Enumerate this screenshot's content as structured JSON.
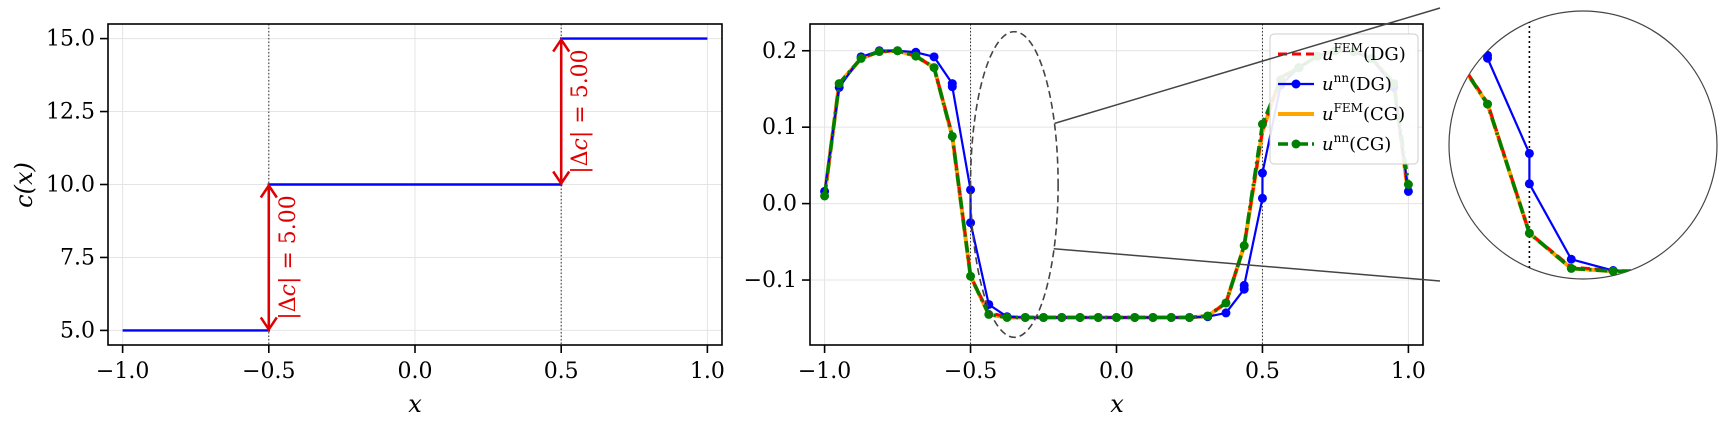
{
  "chart_data": [
    {
      "type": "line",
      "xlabel": "x",
      "ylabel": "c(x)",
      "xlim": [
        -1.05,
        1.05
      ],
      "ylim": [
        4.5,
        15.5
      ],
      "xticks": [
        "−1.0",
        "−0.5",
        "0.0",
        "0.5",
        "1.0"
      ],
      "xtick_values": [
        -1.0,
        -0.5,
        0.0,
        0.5,
        1.0
      ],
      "yticks": [
        "5.0",
        "7.5",
        "10.0",
        "12.5",
        "15.0"
      ],
      "ytick_values": [
        5.0,
        7.5,
        10.0,
        12.5,
        15.0
      ],
      "grid": true,
      "vlines": [
        -0.5,
        0.5
      ],
      "series": [
        {
          "color": "#0000ff",
          "x": [
            -1.0,
            -0.5,
            -0.5,
            0.5,
            0.5,
            1.0
          ],
          "y": [
            5.0,
            5.0,
            10.0,
            10.0,
            15.0,
            15.0
          ]
        }
      ],
      "annotations": [
        {
          "x": -0.5,
          "y_from": 5.0,
          "y_to": 10.0,
          "text_prefix": "|Δ",
          "text_var": "c",
          "text_suffix": "| = 5.00"
        },
        {
          "x": 0.5,
          "y_from": 10.0,
          "y_to": 15.0,
          "text_prefix": "|Δ",
          "text_var": "c",
          "text_suffix": "| = 5.00"
        }
      ]
    },
    {
      "type": "line",
      "xlabel": "x",
      "xlim": [
        -1.05,
        1.05
      ],
      "ylim": [
        -0.185,
        0.235
      ],
      "xticks": [
        "−1.0",
        "−0.5",
        "0.0",
        "0.5",
        "1.0"
      ],
      "xtick_values": [
        -1.0,
        -0.5,
        0.0,
        0.5,
        1.0
      ],
      "yticks": [
        "−0.1",
        "0.0",
        "0.1",
        "0.2"
      ],
      "ytick_values": [
        -0.1,
        0.0,
        0.1,
        0.2
      ],
      "grid": true,
      "vlines": [
        -0.5,
        0.5
      ],
      "legend_position": "top-right",
      "series": [
        {
          "name_var": "u",
          "name_sup": "FEM",
          "name_arg": "(DG)",
          "color": "#ff0000",
          "style": "dashed",
          "x": [
            -1.0,
            -0.95,
            -0.875,
            -0.8125,
            -0.75,
            -0.6875,
            -0.625,
            -0.5625,
            -0.5,
            -0.4375,
            -0.375,
            -0.3125,
            -0.25,
            -0.1875,
            -0.125,
            -0.0625,
            0.0,
            0.0625,
            0.125,
            0.1875,
            0.25,
            0.3125,
            0.375,
            0.4375,
            0.5,
            0.5625,
            0.625,
            0.6875,
            0.75,
            0.8125,
            0.875,
            0.95,
            1.0
          ],
          "y": [
            0.012,
            0.155,
            0.19,
            0.199,
            0.2,
            0.193,
            0.178,
            0.09,
            -0.095,
            -0.143,
            -0.148,
            -0.149,
            -0.149,
            -0.149,
            -0.149,
            -0.149,
            -0.149,
            -0.149,
            -0.149,
            -0.149,
            -0.149,
            -0.147,
            -0.13,
            -0.055,
            0.095,
            0.165,
            0.178,
            0.193,
            0.2,
            0.199,
            0.19,
            0.155,
            0.012
          ]
        },
        {
          "name_var": "u",
          "name_sup": "nn",
          "name_arg": "(DG)",
          "color": "#0000ff",
          "style": "solid-dot",
          "x": [
            -1.0,
            -0.95,
            -0.875,
            -0.8125,
            -0.75,
            -0.6875,
            -0.625,
            -0.5625,
            -0.5625,
            -0.5,
            -0.5,
            -0.4375,
            -0.375,
            -0.3125,
            -0.25,
            -0.1875,
            -0.125,
            -0.0625,
            0.0,
            0.0625,
            0.125,
            0.1875,
            0.25,
            0.3125,
            0.375,
            0.4375,
            0.4375,
            0.5,
            0.5,
            0.5625,
            0.625,
            0.6875,
            0.75,
            0.8125,
            0.875,
            0.95,
            1.0
          ],
          "y": [
            0.016,
            0.152,
            0.192,
            0.2,
            0.2,
            0.198,
            0.192,
            0.157,
            0.153,
            0.018,
            -0.025,
            -0.132,
            -0.148,
            -0.149,
            -0.149,
            -0.149,
            -0.149,
            -0.149,
            -0.149,
            -0.149,
            -0.149,
            -0.149,
            -0.149,
            -0.148,
            -0.143,
            -0.112,
            -0.107,
            0.007,
            0.04,
            0.155,
            0.178,
            0.193,
            0.2,
            0.199,
            0.19,
            0.152,
            0.016
          ]
        },
        {
          "name_var": "u",
          "name_sup": "FEM",
          "name_arg": "(CG)",
          "color": "#ffa500",
          "style": "solid",
          "x": [
            -1.0,
            -0.95,
            -0.875,
            -0.8125,
            -0.75,
            -0.6875,
            -0.625,
            -0.5625,
            -0.5,
            -0.4375,
            -0.375,
            -0.3125,
            -0.25,
            -0.1875,
            -0.125,
            -0.0625,
            0.0,
            0.0625,
            0.125,
            0.1875,
            0.25,
            0.3125,
            0.375,
            0.4375,
            0.5,
            0.5625,
            0.625,
            0.6875,
            0.75,
            0.8125,
            0.875,
            0.95,
            1.0
          ],
          "y": [
            0.01,
            0.157,
            0.19,
            0.199,
            0.2,
            0.193,
            0.178,
            0.088,
            -0.095,
            -0.145,
            -0.149,
            -0.149,
            -0.149,
            -0.149,
            -0.149,
            -0.149,
            -0.149,
            -0.149,
            -0.149,
            -0.149,
            -0.149,
            -0.147,
            -0.13,
            -0.055,
            0.095,
            0.165,
            0.178,
            0.193,
            0.2,
            0.199,
            0.19,
            0.157,
            0.01
          ]
        },
        {
          "name_var": "u",
          "name_sup": "nn",
          "name_arg": "(CG)",
          "color": "#008000",
          "style": "dashdot-dot",
          "x": [
            -1.0,
            -0.95,
            -0.875,
            -0.8125,
            -0.75,
            -0.6875,
            -0.625,
            -0.5625,
            -0.5,
            -0.4375,
            -0.375,
            -0.3125,
            -0.25,
            -0.1875,
            -0.125,
            -0.0625,
            0.0,
            0.0625,
            0.125,
            0.1875,
            0.25,
            0.3125,
            0.375,
            0.4375,
            0.5,
            0.5625,
            0.625,
            0.6875,
            0.75,
            0.8125,
            0.875,
            0.95,
            1.0
          ],
          "y": [
            0.01,
            0.157,
            0.19,
            0.199,
            0.2,
            0.193,
            0.178,
            0.088,
            -0.095,
            -0.145,
            -0.149,
            -0.149,
            -0.149,
            -0.149,
            -0.149,
            -0.149,
            -0.149,
            -0.149,
            -0.149,
            -0.149,
            -0.149,
            -0.147,
            -0.13,
            -0.055,
            0.104,
            0.162,
            0.178,
            0.193,
            0.2,
            0.199,
            0.19,
            0.157,
            0.025
          ]
        }
      ],
      "zoom": {
        "x_center": -0.35,
        "y_center": 0.025,
        "x_radius": 0.15,
        "y_radius": 0.2,
        "x_range": [
          -0.62,
          -0.22
        ],
        "y_range": [
          -0.16,
          0.22
        ]
      }
    }
  ]
}
